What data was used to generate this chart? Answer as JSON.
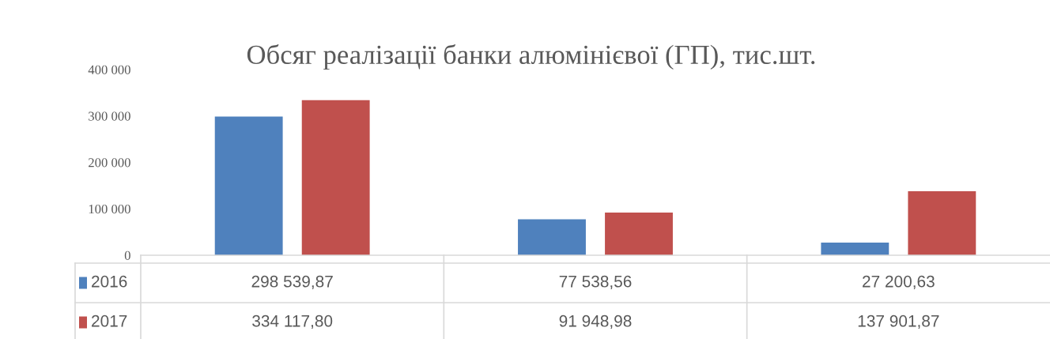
{
  "chart_data": {
    "type": "bar",
    "title": "Обсяг реалізації банки алюмінієвої (ГП), тис.шт.",
    "categories": [
      null,
      null,
      null
    ],
    "series": [
      {
        "name": "2016",
        "color": "#4f81bd",
        "values": [
          298539.87,
          77538.56,
          27200.63
        ],
        "value_labels": [
          "298 539,87",
          "77 538,56",
          "27 200,63"
        ]
      },
      {
        "name": "2017",
        "color": "#c0504d",
        "values": [
          334117.8,
          91948.98,
          137901.87
        ],
        "value_labels": [
          "334 117,80",
          "91 948,98",
          "137 901,87"
        ]
      }
    ],
    "ylim": [
      0,
      400000
    ],
    "yticks": [
      0,
      {
        "value": 100000,
        "label": "100 000"
      },
      {
        "value": 200000,
        "label": "200 000"
      },
      {
        "value": 300000,
        "label": "300 000"
      },
      {
        "value": 400000,
        "label": "400 000"
      }
    ],
    "legend": "bottom"
  }
}
